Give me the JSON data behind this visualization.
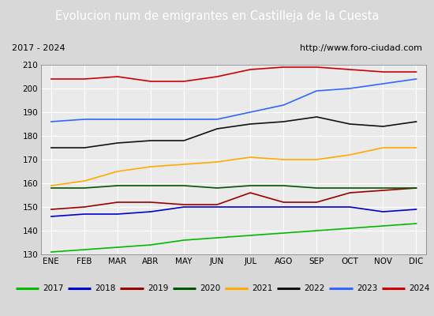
{
  "title": "Evolucion num de emigrantes en Castilleja de la Cuesta",
  "title_color": "#ffffff",
  "title_bg_color": "#4a7abc",
  "subtitle_left": "2017 - 2024",
  "subtitle_right": "http://www.foro-ciudad.com",
  "months": [
    "ENE",
    "FEB",
    "MAR",
    "ABR",
    "MAY",
    "JUN",
    "JUL",
    "AGO",
    "SEP",
    "OCT",
    "NOV",
    "DIC"
  ],
  "ylim": [
    130,
    210
  ],
  "yticks": [
    130,
    140,
    150,
    160,
    170,
    180,
    190,
    200,
    210
  ],
  "bg_color": "#d8d8d8",
  "plot_bg_color": "#eaeaea",
  "grid_color": "#ffffff",
  "series": {
    "2017": {
      "color": "#00bb00",
      "data": [
        131,
        132,
        133,
        134,
        136,
        137,
        138,
        139,
        140,
        141,
        142,
        143
      ]
    },
    "2018": {
      "color": "#0000cc",
      "data": [
        146,
        147,
        147,
        148,
        150,
        150,
        150,
        150,
        150,
        150,
        148,
        149
      ]
    },
    "2019": {
      "color": "#990000",
      "data": [
        149,
        150,
        152,
        152,
        151,
        151,
        156,
        152,
        152,
        156,
        157,
        158
      ]
    },
    "2020": {
      "color": "#005500",
      "data": [
        158,
        158,
        159,
        159,
        159,
        158,
        159,
        159,
        158,
        158,
        158,
        158
      ]
    },
    "2021": {
      "color": "#ffaa00",
      "data": [
        159,
        161,
        165,
        167,
        168,
        169,
        171,
        170,
        170,
        172,
        175,
        175
      ]
    },
    "2022": {
      "color": "#111111",
      "data": [
        175,
        175,
        177,
        178,
        178,
        183,
        185,
        186,
        188,
        185,
        184,
        186
      ]
    },
    "2023": {
      "color": "#3366ff",
      "data": [
        186,
        187,
        187,
        187,
        187,
        187,
        190,
        193,
        199,
        200,
        202,
        204
      ]
    },
    "2024": {
      "color": "#cc0000",
      "data": [
        204,
        204,
        205,
        203,
        203,
        205,
        208,
        209,
        209,
        208,
        207,
        207
      ]
    }
  }
}
